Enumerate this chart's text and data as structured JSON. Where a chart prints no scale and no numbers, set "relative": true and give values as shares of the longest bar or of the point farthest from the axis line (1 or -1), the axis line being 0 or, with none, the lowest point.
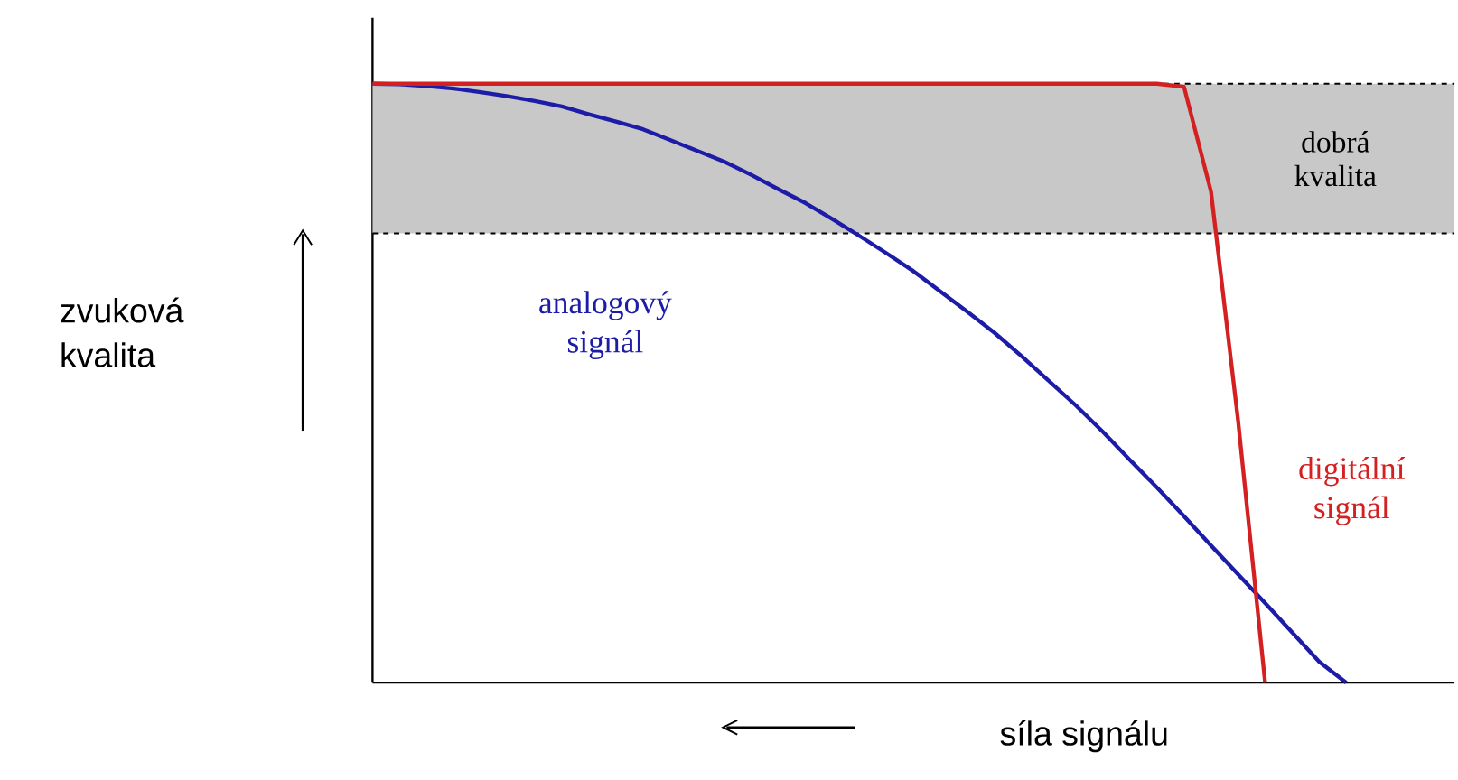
{
  "chart_data": {
    "type": "line",
    "relative": true,
    "xlabel": "síla signálu",
    "annotations": [
      "zvuková kvalita"
    ],
    "categories": [
      null,
      null,
      null,
      null,
      null,
      null,
      null,
      null,
      null,
      null,
      null,
      null,
      null,
      null,
      null,
      null,
      null,
      null,
      null,
      null,
      null,
      null,
      null,
      null,
      null,
      null,
      null,
      null,
      null,
      null,
      null,
      null,
      null,
      null,
      null,
      null,
      null
    ],
    "series": [
      {
        "name": "analogový signál",
        "color": "#1c1ca8",
        "values": [
          1,
          0.999,
          0.996,
          0.992,
          0.986,
          0.979,
          0.971,
          0.962,
          0.949,
          0.937,
          0.924,
          0.906,
          0.888,
          0.87,
          0.848,
          0.824,
          0.801,
          0.774,
          0.746,
          0.717,
          0.687,
          0.653,
          0.619,
          0.584,
          0.545,
          0.504,
          0.463,
          0.419,
          0.372,
          0.326,
          0.278,
          0.229,
          0.181,
          0.133,
          0.084,
          0.035,
          0
        ]
      },
      {
        "name": "digitální signál",
        "color": "#d42020",
        "values": [
          1,
          1,
          1,
          1,
          1,
          1,
          1,
          1,
          1,
          1,
          1,
          1,
          1,
          1,
          1,
          1,
          1,
          1,
          1,
          1,
          1,
          1,
          1,
          1,
          1,
          1,
          1,
          1,
          1,
          1,
          0.995,
          0.82,
          0.438,
          0,
          null,
          null,
          null
        ]
      }
    ],
    "bands": [
      {
        "axis": "y",
        "from": 0.75,
        "to": 1,
        "label": "dobrá kvalita",
        "color": "#c8c8c8"
      }
    ],
    "ref_lines": [
      {
        "axis": "y",
        "value": 0.75,
        "color": "#000000",
        "line_style": "dashed"
      },
      {
        "axis": "y",
        "value": 1,
        "color": "#000000",
        "line_style": "dashed"
      }
    ]
  }
}
